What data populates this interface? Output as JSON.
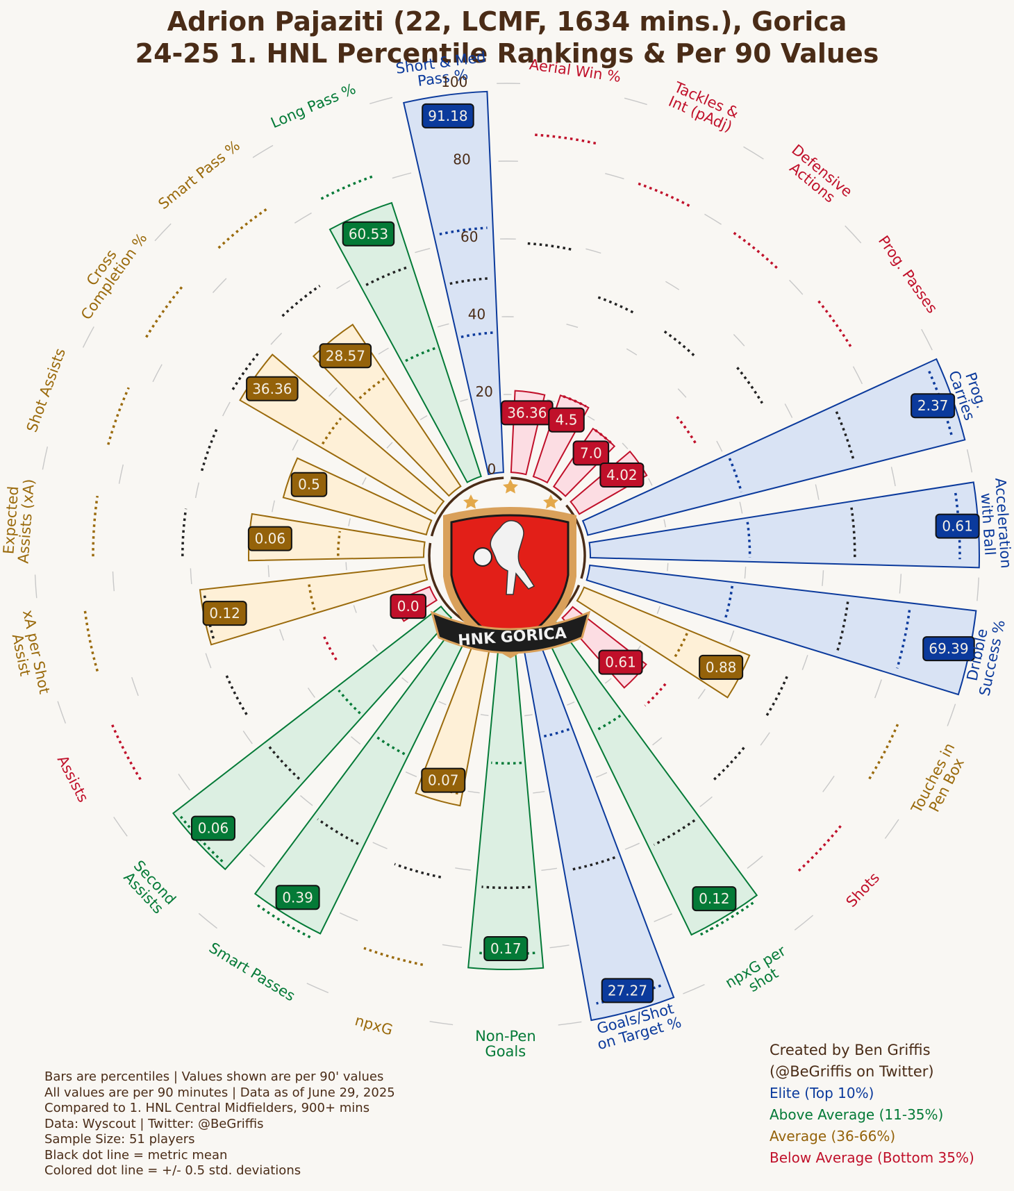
{
  "title": {
    "line1": "Adrion Pajaziti (22, LCMF, 1634 mins.), Gorica",
    "line2": "24-25 1. HNL Percentile Rankings & Per 90 Values"
  },
  "chart_data": {
    "type": "radial_bar",
    "rlim": [
      0,
      100
    ],
    "ticks": [
      0,
      20,
      40,
      60,
      80,
      100
    ],
    "colors": {
      "Elite": {
        "stroke": "#0b3a9c",
        "fill": "#d9e3f4",
        "box": "#0b3a9c"
      },
      "Above": {
        "stroke": "#047a37",
        "fill": "#dcefe2",
        "box": "#047a37"
      },
      "Average": {
        "stroke": "#9a6a0c",
        "fill": "#fef0d7",
        "box": "#94620a"
      },
      "Below": {
        "stroke": "#c0102a",
        "fill": "#fcdde3",
        "box": "#c0102a"
      }
    },
    "metrics": [
      {
        "label": "Aerial Win %",
        "percentile": 21,
        "value": "36.36",
        "tier": "Below",
        "mean": 59,
        "std_low": null,
        "std_high": 87
      },
      {
        "label": "Tackles & Int (pAdj)",
        "percentile": 22,
        "value": "4.5",
        "tier": "Below",
        "mean": 49,
        "std_low": 22,
        "std_high": 80
      },
      {
        "label": "Defensive Actions",
        "percentile": 18,
        "value": "7.0",
        "tier": "Below",
        "mean": 49,
        "std_low": 18,
        "std_high": 80
      },
      {
        "label": "Prog. Passes",
        "percentile": 20,
        "value": "4.02",
        "tier": "Below",
        "mean": 55,
        "std_low": 35,
        "std_high": 82
      },
      {
        "label": "Prog. Carries",
        "percentile": 100,
        "value": "2.37",
        "tier": "Elite",
        "mean": 71,
        "std_low": 41,
        "std_high": 97
      },
      {
        "label": "Acceleration with Ball",
        "percentile": 100,
        "value": "0.61",
        "tier": "Elite",
        "mean": 68,
        "std_low": 41,
        "std_high": 95
      },
      {
        "label": "Dribble Success %",
        "percentile": 100,
        "value": "69.39",
        "tier": "Elite",
        "mean": 67,
        "std_low": 37,
        "std_high": 83
      },
      {
        "label": "Touches in Pen Box",
        "percentile": 46,
        "value": "0.88",
        "tier": "Average",
        "mean": 57,
        "std_low": 29,
        "std_high": 88
      },
      {
        "label": "Shots",
        "percentile": 24,
        "value": "0.61",
        "tier": "Below",
        "mean": 57,
        "std_low": 31,
        "std_high": 89
      },
      {
        "label": "npxG per shot",
        "percentile": 87,
        "value": "0.12",
        "tier": "Above",
        "mean": 62,
        "std_low": 29,
        "std_high": 88
      },
      {
        "label": "Goals/Shot on Target %",
        "percentile": 100,
        "value": "27.27",
        "tier": "Elite",
        "mean": 61,
        "std_low": 26,
        "std_high": 96
      },
      {
        "label": "Non-Pen Goals",
        "percentile": 85,
        "value": "0.17",
        "tier": "Above",
        "mean": 64,
        "std_low": 32,
        "std_high": 81
      },
      {
        "label": "npxG",
        "percentile": 44,
        "value": "0.07",
        "tier": "Average",
        "mean": 63,
        "std_low": 41,
        "std_high": 86
      },
      {
        "label": "Smart Passes",
        "percentile": 87,
        "value": "0.39",
        "tier": "Above",
        "mean": 62,
        "std_low": 36,
        "std_high": 89
      },
      {
        "label": "Second Assists",
        "percentile": 87,
        "value": "0.06",
        "tier": "Above",
        "mean": 57,
        "std_low": 34,
        "std_high": 86
      },
      {
        "label": "Assists",
        "percentile": 10,
        "value": "0.0",
        "tier": "Below",
        "mean": 57,
        "std_low": 30,
        "std_high": 89
      },
      {
        "label": "xA per Shot Assist",
        "percentile": 58,
        "value": "0.12",
        "tier": "Average",
        "mean": 57,
        "std_low": 30,
        "std_high": 88
      },
      {
        "label": "Expected Assists (xA)",
        "percentile": 45,
        "value": "0.06",
        "tier": "Average",
        "mean": 62,
        "std_low": 22,
        "std_high": 85
      },
      {
        "label": "Shot Assists",
        "percentile": 38,
        "value": "0.5",
        "tier": "Average",
        "mean": 60,
        "std_low": null,
        "std_high": 85
      },
      {
        "label": "Cross Completion %",
        "percentile": 58,
        "value": "36.36",
        "tier": "Average",
        "mean": 61,
        "std_low": 34,
        "std_high": 87
      },
      {
        "label": "Smart Pass %",
        "percentile": 50,
        "value": "28.57",
        "tier": "Average",
        "mean": 63,
        "std_low": 34,
        "std_high": 87
      },
      {
        "label": "Long Pass %",
        "percentile": 74,
        "value": "60.53",
        "tier": "Above",
        "mean": 57,
        "std_low": 35,
        "std_high": 82
      },
      {
        "label": "Short & Med Pass %",
        "percentile": 98,
        "value": "91.18",
        "tier": "Elite",
        "mean": 50,
        "std_low": 36,
        "std_high": 63
      }
    ]
  },
  "notes": [
    "Bars are percentiles | Values shown are per 90' values",
    "All values are per 90 minutes | Data as of June 29, 2025",
    "Compared to 1. HNL Central Midfielders, 900+ mins",
    "Data: Wyscout | Twitter: @BeGriffis",
    "Sample Size: 51 players",
    "Black dot line = metric mean",
    "Colored dot line = +/- 0.5 std. deviations"
  ],
  "credit": {
    "line1": "Created by Ben Griffis",
    "line2": "(@BeGriffis on Twitter)"
  },
  "legend": [
    {
      "label": "Elite (Top 10%)",
      "color": "#0b3a9c"
    },
    {
      "label": "Above Average (11-35%)",
      "color": "#047a37"
    },
    {
      "label": "Average (36-66%)",
      "color": "#94620a"
    },
    {
      "label": "Below Average (Bottom 35%)",
      "color": "#c0102a"
    }
  ],
  "logo": {
    "text": "HNK GORICA",
    "star_color": "#e3a84a",
    "shield_color": "#e21f18",
    "frame_color": "#d9a05a"
  }
}
